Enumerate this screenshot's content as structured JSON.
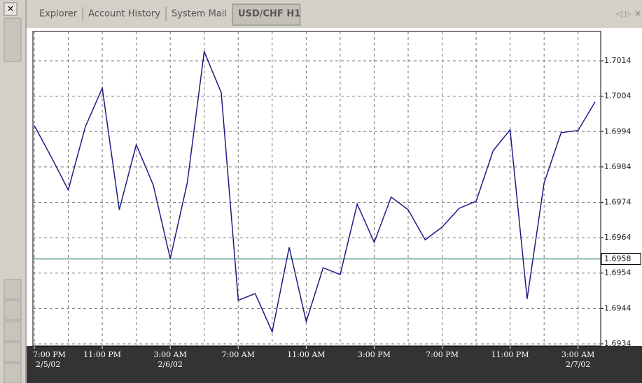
{
  "tabs": [
    "Explorer",
    "Account History",
    "System Mail",
    "USD/CHF H1"
  ],
  "chart_data": {
    "type": "line",
    "categories": [
      "7:00 PM",
      null,
      null,
      null,
      "11:00 PM",
      null,
      null,
      null,
      "3:00 AM",
      null,
      null,
      null,
      "7:00 AM",
      null,
      null,
      null,
      "11:00 AM",
      null,
      null,
      null,
      "3:00 PM",
      null,
      null,
      null,
      "7:00 PM",
      null,
      null,
      null,
      "11:00 PM",
      null,
      null,
      null,
      "3:00 AM",
      null
    ],
    "dates": [
      "2/5/02",
      null,
      null,
      null,
      null,
      null,
      null,
      null,
      "2/6/02",
      null,
      null,
      null,
      null,
      null,
      null,
      null,
      null,
      null,
      null,
      null,
      null,
      null,
      null,
      null,
      null,
      null,
      null,
      null,
      null,
      null,
      null,
      null,
      "2/7/02",
      null
    ],
    "values": [
      1.69957,
      1.69868,
      1.69775,
      1.69953,
      1.70063,
      1.69719,
      1.69903,
      1.69789,
      1.69581,
      1.69795,
      1.70166,
      1.7005,
      1.69463,
      1.69482,
      1.69374,
      1.69613,
      1.69403,
      1.69555,
      1.69536,
      1.69735,
      1.69627,
      1.69755,
      1.69719,
      1.69634,
      1.6967,
      1.69723,
      1.69743,
      1.69886,
      1.69945,
      1.69467,
      1.69795,
      1.69937,
      1.69943,
      1.70024
    ],
    "color": "#1c1c84",
    "ylim": [
      1.69334,
      1.70223
    ],
    "yticks": [
      1.6934,
      1.6944,
      1.6954,
      1.6964,
      1.6974,
      1.6984,
      1.6994,
      1.7004,
      1.7014
    ],
    "grid": true,
    "level": {
      "value": 1.6958,
      "color": "#2e7d6b"
    }
  }
}
